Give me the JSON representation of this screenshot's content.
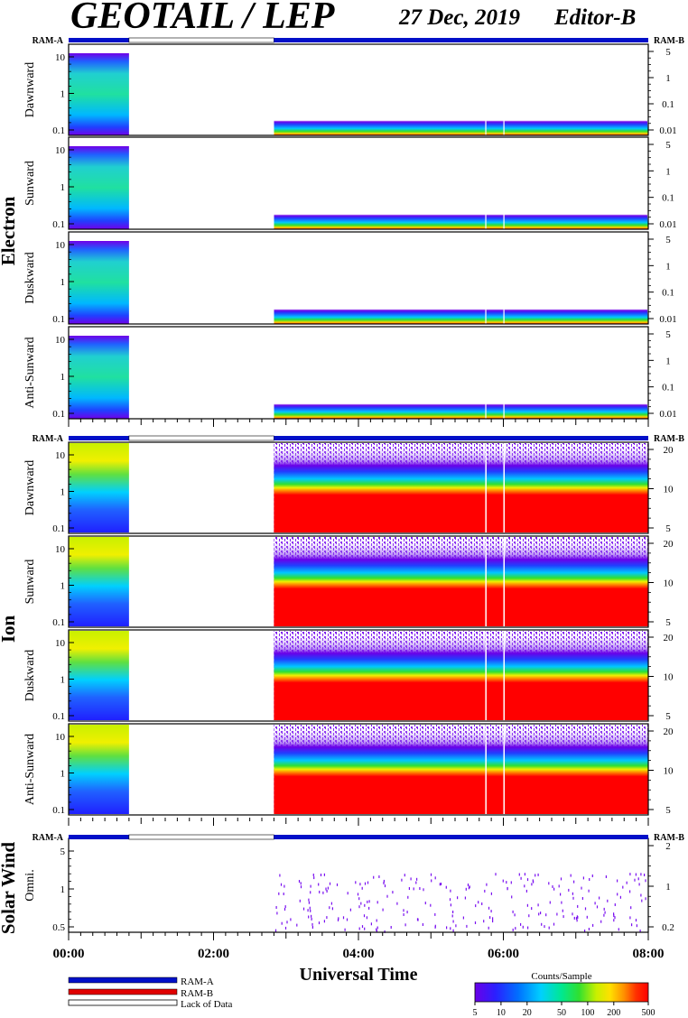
{
  "header": {
    "title": "GEOTAIL / LEP",
    "date": "27 Dec, 2019",
    "editor": "Editor-B"
  },
  "sections": [
    {
      "label": "Electron"
    },
    {
      "label": "Ion"
    },
    {
      "label": "Solar Wind"
    }
  ],
  "ram_labels": {
    "left": "RAM-A",
    "right": "RAM-B"
  },
  "legend": {
    "items": [
      {
        "label": "RAM-A",
        "color": "#0010c8"
      },
      {
        "label": "RAM-B",
        "color": "#e00000"
      },
      {
        "label": "Lack of Data",
        "color": "#ffffff"
      }
    ]
  },
  "colorbar": {
    "title": "Counts/Sample",
    "ticks": [
      "5",
      "10",
      "20",
      "50",
      "100",
      "200",
      "500"
    ],
    "colors": [
      "#6a00e8",
      "#2a20ff",
      "#0070ff",
      "#00d0ff",
      "#00e890",
      "#30e030",
      "#c8f000",
      "#ffe000",
      "#ff9000",
      "#ff3000",
      "#ff0000"
    ]
  },
  "chart_data": {
    "type": "heatmap",
    "xlabel": "Universal Time",
    "x_ticks": [
      "00:00",
      "02:00",
      "04:00",
      "06:00",
      "08:00"
    ],
    "xlim_hours": [
      0,
      8
    ],
    "ram_mode_segments": [
      {
        "mode": "RAM-A",
        "start": "00:00",
        "end": "00:50"
      },
      {
        "mode": "Lack of Data",
        "start": "00:50",
        "end": "02:50"
      },
      {
        "mode": "RAM-A",
        "start": "02:50",
        "end": "08:00"
      }
    ],
    "data_gap": {
      "start": "00:50",
      "end": "02:50"
    },
    "panels": [
      {
        "group": "Electron",
        "label": "Dawnward",
        "left_ticks": [
          "10",
          "1",
          "0.1"
        ],
        "right_ticks": [
          "5",
          "1",
          "0.1",
          "0.01"
        ]
      },
      {
        "group": "Electron",
        "label": "Sunward",
        "left_ticks": [
          "10",
          "1",
          "0.1"
        ],
        "right_ticks": [
          "5",
          "1",
          "0.1",
          "0.01"
        ]
      },
      {
        "group": "Electron",
        "label": "Duskward",
        "left_ticks": [
          "10",
          "1",
          "0.1"
        ],
        "right_ticks": [
          "5",
          "1",
          "0.1",
          "0.01"
        ]
      },
      {
        "group": "Electron",
        "label": "Anti-Sunward",
        "left_ticks": [
          "10",
          "1",
          "0.1"
        ],
        "right_ticks": [
          "5",
          "1",
          "0.1",
          "0.01"
        ]
      },
      {
        "group": "Ion",
        "label": "Dawnward",
        "left_ticks": [
          "10",
          "1",
          "0.1"
        ],
        "right_ticks": [
          "20",
          "10",
          "5"
        ]
      },
      {
        "group": "Ion",
        "label": "Sunward",
        "left_ticks": [
          "10",
          "1",
          "0.1"
        ],
        "right_ticks": [
          "20",
          "10",
          "5"
        ]
      },
      {
        "group": "Ion",
        "label": "Duskward",
        "left_ticks": [
          "10",
          "1",
          "0.1"
        ],
        "right_ticks": [
          "20",
          "10",
          "5"
        ]
      },
      {
        "group": "Ion",
        "label": "Anti-Sunward",
        "left_ticks": [
          "10",
          "1",
          "0.1"
        ],
        "right_ticks": [
          "20",
          "10",
          "5"
        ]
      },
      {
        "group": "Solar Wind",
        "label": "Omni.",
        "left_ticks": [
          "5",
          "1",
          "0.5"
        ],
        "right_ticks": [
          "2",
          "1",
          "0.2"
        ]
      }
    ]
  }
}
